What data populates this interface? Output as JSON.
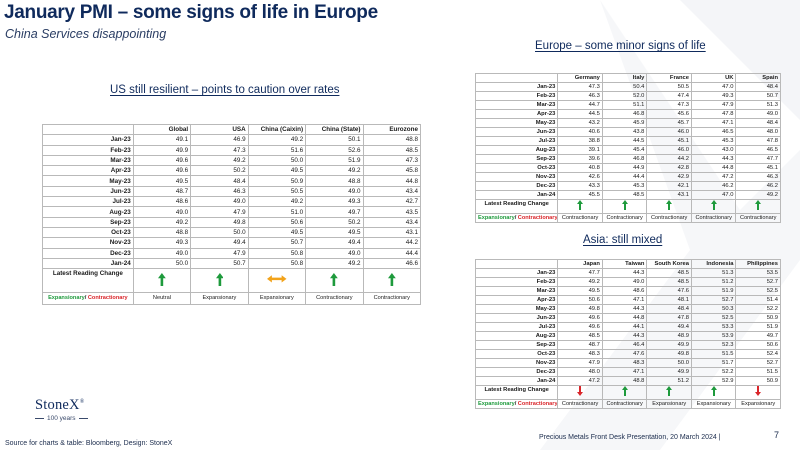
{
  "title": "January PMI – some signs of life in Europe",
  "subtitle": "China Services disappointing",
  "us_section": {
    "heading": "US still resilient – points to caution over rates",
    "columns": [
      "",
      "Global",
      "USA",
      "China (Caixin)",
      "China (State)",
      "Eurozone"
    ],
    "rows": [
      {
        "label": "Jan-23",
        "values": [
          "49.1",
          "46.9",
          "49.2",
          "50.1",
          "48.8"
        ]
      },
      {
        "label": "Feb-23",
        "values": [
          "49.9",
          "47.3",
          "51.6",
          "52.6",
          "48.5"
        ]
      },
      {
        "label": "Mar-23",
        "values": [
          "49.6",
          "49.2",
          "50.0",
          "51.9",
          "47.3"
        ]
      },
      {
        "label": "Apr-23",
        "values": [
          "49.6",
          "50.2",
          "49.5",
          "49.2",
          "45.8"
        ]
      },
      {
        "label": "May-23",
        "values": [
          "49.5",
          "48.4",
          "50.9",
          "48.8",
          "44.8"
        ]
      },
      {
        "label": "Jun-23",
        "values": [
          "48.7",
          "46.3",
          "50.5",
          "49.0",
          "43.4"
        ]
      },
      {
        "label": "Jul-23",
        "values": [
          "48.6",
          "49.0",
          "49.2",
          "49.3",
          "42.7"
        ]
      },
      {
        "label": "Aug-23",
        "values": [
          "49.0",
          "47.9",
          "51.0",
          "49.7",
          "43.5"
        ]
      },
      {
        "label": "Sep-23",
        "values": [
          "49.2",
          "49.8",
          "50.6",
          "50.2",
          "43.4"
        ]
      },
      {
        "label": "Oct-23",
        "values": [
          "48.8",
          "50.0",
          "49.5",
          "49.5",
          "43.1"
        ]
      },
      {
        "label": "Nov-23",
        "values": [
          "49.3",
          "49.4",
          "50.7",
          "49.4",
          "44.2"
        ]
      },
      {
        "label": "Dec-23",
        "values": [
          "49.0",
          "47.9",
          "50.8",
          "49.0",
          "44.4"
        ]
      },
      {
        "label": "Jan-24",
        "values": [
          "50.0",
          "50.7",
          "50.8",
          "49.2",
          "46.6"
        ]
      }
    ],
    "latest_label": "Latest Reading Change",
    "arrows": [
      "up-green",
      "up-green",
      "sideways-orange",
      "up-green",
      "up-green"
    ],
    "status_label_exp": "Expansionary",
    "status_label_sep": "/ ",
    "status_label_con": "Contractionary",
    "status": [
      {
        "text": "Neutral",
        "kind": "neutral"
      },
      {
        "text": "Expansionary",
        "kind": "expansionary"
      },
      {
        "text": "Expansionary",
        "kind": "expansionary"
      },
      {
        "text": "Contractionary",
        "kind": "contractionary"
      },
      {
        "text": "Contractionary",
        "kind": "contractionary"
      }
    ]
  },
  "europe_section": {
    "heading": "Europe – some minor signs of life",
    "columns": [
      "",
      "Germany",
      "Italy",
      "France",
      "UK",
      "Spain"
    ],
    "rows": [
      {
        "label": "Jan-23",
        "values": [
          "47.3",
          "50.4",
          "50.5",
          "47.0",
          "48.4"
        ]
      },
      {
        "label": "Feb-23",
        "values": [
          "46.3",
          "52.0",
          "47.4",
          "49.3",
          "50.7"
        ]
      },
      {
        "label": "Mar-23",
        "values": [
          "44.7",
          "51.1",
          "47.3",
          "47.9",
          "51.3"
        ]
      },
      {
        "label": "Apr-23",
        "values": [
          "44.5",
          "46.8",
          "45.6",
          "47.8",
          "49.0"
        ]
      },
      {
        "label": "May-23",
        "values": [
          "43.2",
          "45.9",
          "45.7",
          "47.1",
          "48.4"
        ]
      },
      {
        "label": "Jun-23",
        "values": [
          "40.6",
          "43.8",
          "46.0",
          "46.5",
          "48.0"
        ]
      },
      {
        "label": "Jul-23",
        "values": [
          "38.8",
          "44.5",
          "45.1",
          "45.3",
          "47.8"
        ]
      },
      {
        "label": "Aug-23",
        "values": [
          "39.1",
          "45.4",
          "46.0",
          "43.0",
          "46.5"
        ]
      },
      {
        "label": "Sep-23",
        "values": [
          "39.6",
          "46.8",
          "44.2",
          "44.3",
          "47.7"
        ]
      },
      {
        "label": "Oct-23",
        "values": [
          "40.8",
          "44.9",
          "42.8",
          "44.8",
          "45.1"
        ]
      },
      {
        "label": "Nov-23",
        "values": [
          "42.6",
          "44.4",
          "42.9",
          "47.2",
          "46.3"
        ]
      },
      {
        "label": "Dec-23",
        "values": [
          "43.3",
          "45.3",
          "42.1",
          "46.2",
          "46.2"
        ]
      },
      {
        "label": "Jan-24",
        "values": [
          "45.5",
          "48.5",
          "43.1",
          "47.0",
          "49.2"
        ]
      }
    ],
    "latest_label": "Latest Reading Change",
    "arrows": [
      "up-green",
      "up-green",
      "up-green",
      "up-green",
      "up-green"
    ],
    "status_label_exp": "Expansionary",
    "status_label_sep": "/ ",
    "status_label_con": "Contractionary",
    "status": [
      {
        "text": "Contractionary",
        "kind": "contractionary"
      },
      {
        "text": "Contractionary",
        "kind": "contractionary"
      },
      {
        "text": "Contractionary",
        "kind": "contractionary"
      },
      {
        "text": "Contractionary",
        "kind": "contractionary"
      },
      {
        "text": "Contractionary",
        "kind": "contractionary"
      }
    ]
  },
  "asia_section": {
    "heading": "Asia: still mixed",
    "columns": [
      "",
      "Japan",
      "Taiwan",
      "South Korea",
      "Indonesia",
      "Philippines"
    ],
    "rows": [
      {
        "label": "Jan-23",
        "values": [
          "47.7",
          "44.3",
          "48.5",
          "51.3",
          "53.5"
        ]
      },
      {
        "label": "Feb-23",
        "values": [
          "49.2",
          "49.0",
          "48.5",
          "51.2",
          "52.7"
        ]
      },
      {
        "label": "Mar-23",
        "values": [
          "49.5",
          "48.6",
          "47.6",
          "51.9",
          "52.5"
        ]
      },
      {
        "label": "Apr-23",
        "values": [
          "50.6",
          "47.1",
          "48.1",
          "52.7",
          "51.4"
        ]
      },
      {
        "label": "May-23",
        "values": [
          "49.8",
          "44.3",
          "48.4",
          "50.3",
          "52.2"
        ]
      },
      {
        "label": "Jun-23",
        "values": [
          "49.6",
          "44.8",
          "47.8",
          "52.5",
          "50.9"
        ]
      },
      {
        "label": "Jul-23",
        "values": [
          "49.6",
          "44.1",
          "49.4",
          "53.3",
          "51.9"
        ]
      },
      {
        "label": "Aug-23",
        "values": [
          "48.5",
          "44.3",
          "48.9",
          "53.9",
          "49.7"
        ]
      },
      {
        "label": "Sep-23",
        "values": [
          "48.7",
          "46.4",
          "49.9",
          "52.3",
          "50.6"
        ]
      },
      {
        "label": "Oct-23",
        "values": [
          "48.3",
          "47.6",
          "49.8",
          "51.5",
          "52.4"
        ]
      },
      {
        "label": "Nov-23",
        "values": [
          "47.9",
          "48.3",
          "50.0",
          "51.7",
          "52.7"
        ]
      },
      {
        "label": "Dec-23",
        "values": [
          "48.0",
          "47.1",
          "49.9",
          "52.2",
          "51.5"
        ]
      },
      {
        "label": "Jan-24",
        "values": [
          "47.2",
          "48.8",
          "51.2",
          "52.9",
          "50.9"
        ]
      }
    ],
    "latest_label": "Latest Reading Change",
    "arrows": [
      "down-red",
      "up-green",
      "up-green",
      "up-green",
      "down-red"
    ],
    "status_label_exp": "Expansionary",
    "status_label_sep": "/ ",
    "status_label_con": "Contractionary",
    "status": [
      {
        "text": "Contractionary",
        "kind": "contractionary"
      },
      {
        "text": "Contractionary",
        "kind": "contractionary"
      },
      {
        "text": "Expansionary",
        "kind": "expansionary"
      },
      {
        "text": "Expansionary",
        "kind": "expansionary"
      },
      {
        "text": "Expansionary",
        "kind": "expansionary"
      }
    ]
  },
  "logo": {
    "name": "StoneX",
    "trademark": "®",
    "years": "100 years"
  },
  "source": "Source for charts & table: Bloomberg, Design: StoneX",
  "footer": "Precious Metals Front Desk Presentation, 20 March 2024 |",
  "page_number": "7",
  "colors": {
    "navy": "#0f2a5c",
    "expansionary": "#1e9a3c",
    "contractionary": "#d9252a",
    "neutral_arrow": "#f2a31b"
  }
}
